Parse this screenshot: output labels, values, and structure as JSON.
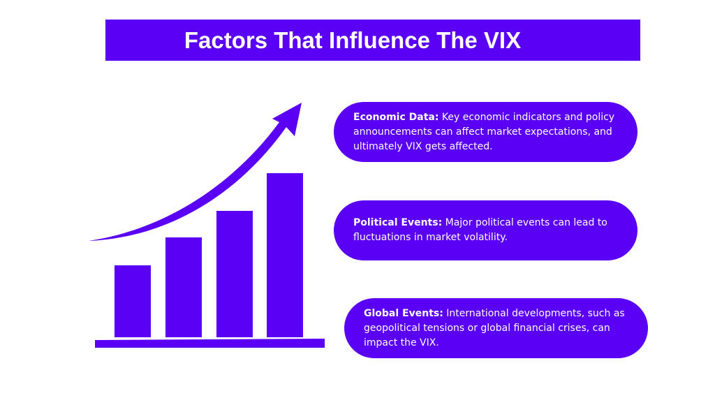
{
  "header": {
    "title": "Factors That Influence The VIX"
  },
  "items": [
    {
      "label": "Economic Data:",
      "text": "Key economic indicators and policy announcements can affect market expectations, and ultimately VIX gets affected."
    },
    {
      "label": "Political Events:",
      "text": "Major political events can lead to fluctuations in market volatility."
    },
    {
      "label": "Global Events:",
      "text": "International developments, such as geopolitical tensions or global financial crises, can impact the VIX."
    }
  ]
}
